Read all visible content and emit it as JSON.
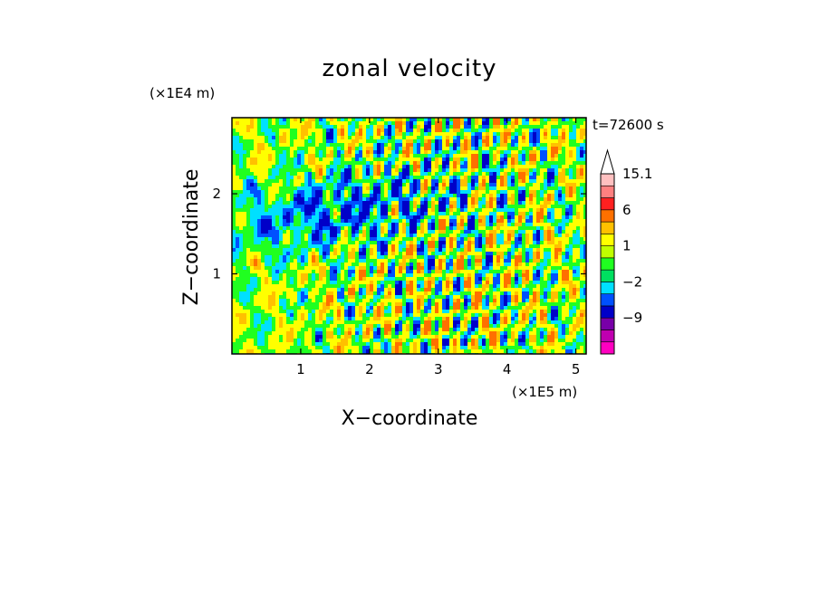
{
  "chart_data": {
    "type": "heatmap",
    "title": "zonal velocity",
    "xlabel": "X−coordinate",
    "ylabel": "Z−coordinate",
    "x_unit": "(×1E5 m)",
    "y_unit": "(×1E4 m)",
    "time_label": "t=72600 s",
    "xlim": [
      0,
      5.15
    ],
    "ylim": [
      0,
      2.95
    ],
    "x_ticks": [
      "1",
      "2",
      "3",
      "4",
      "5"
    ],
    "y_ticks": [
      "1",
      "2"
    ],
    "x_tick_values": [
      1,
      2,
      3,
      4,
      5
    ],
    "y_tick_values": [
      1,
      2
    ],
    "colorbar": {
      "labels": [
        "15.1",
        "6",
        "1",
        "−2",
        "−9"
      ],
      "label_values": [
        15.1,
        6,
        1,
        -2,
        -9
      ],
      "levels": [
        -15,
        -12,
        -9,
        -6,
        -4,
        -2,
        -1,
        0,
        1,
        2,
        4,
        6,
        9,
        12,
        15.1
      ],
      "colors": [
        "#ff00c0",
        "#c000b0",
        "#7800a8",
        "#0000c8",
        "#0050ff",
        "#00e0ff",
        "#00e060",
        "#20ff20",
        "#c0ff00",
        "#ffff00",
        "#ffc000",
        "#ff7000",
        "#ff2020",
        "#ff8080",
        "#ffc0c0"
      ],
      "extend_top": true
    },
    "field_palette": {
      "strong_negative": "#0000c8",
      "negative": "#0050ff",
      "weak_negative": "#00e0ff",
      "near_zero_low": "#20ff20",
      "near_zero_high": "#ffff00",
      "positive": "#ffc000",
      "strong_positive": "#ff7000"
    }
  }
}
